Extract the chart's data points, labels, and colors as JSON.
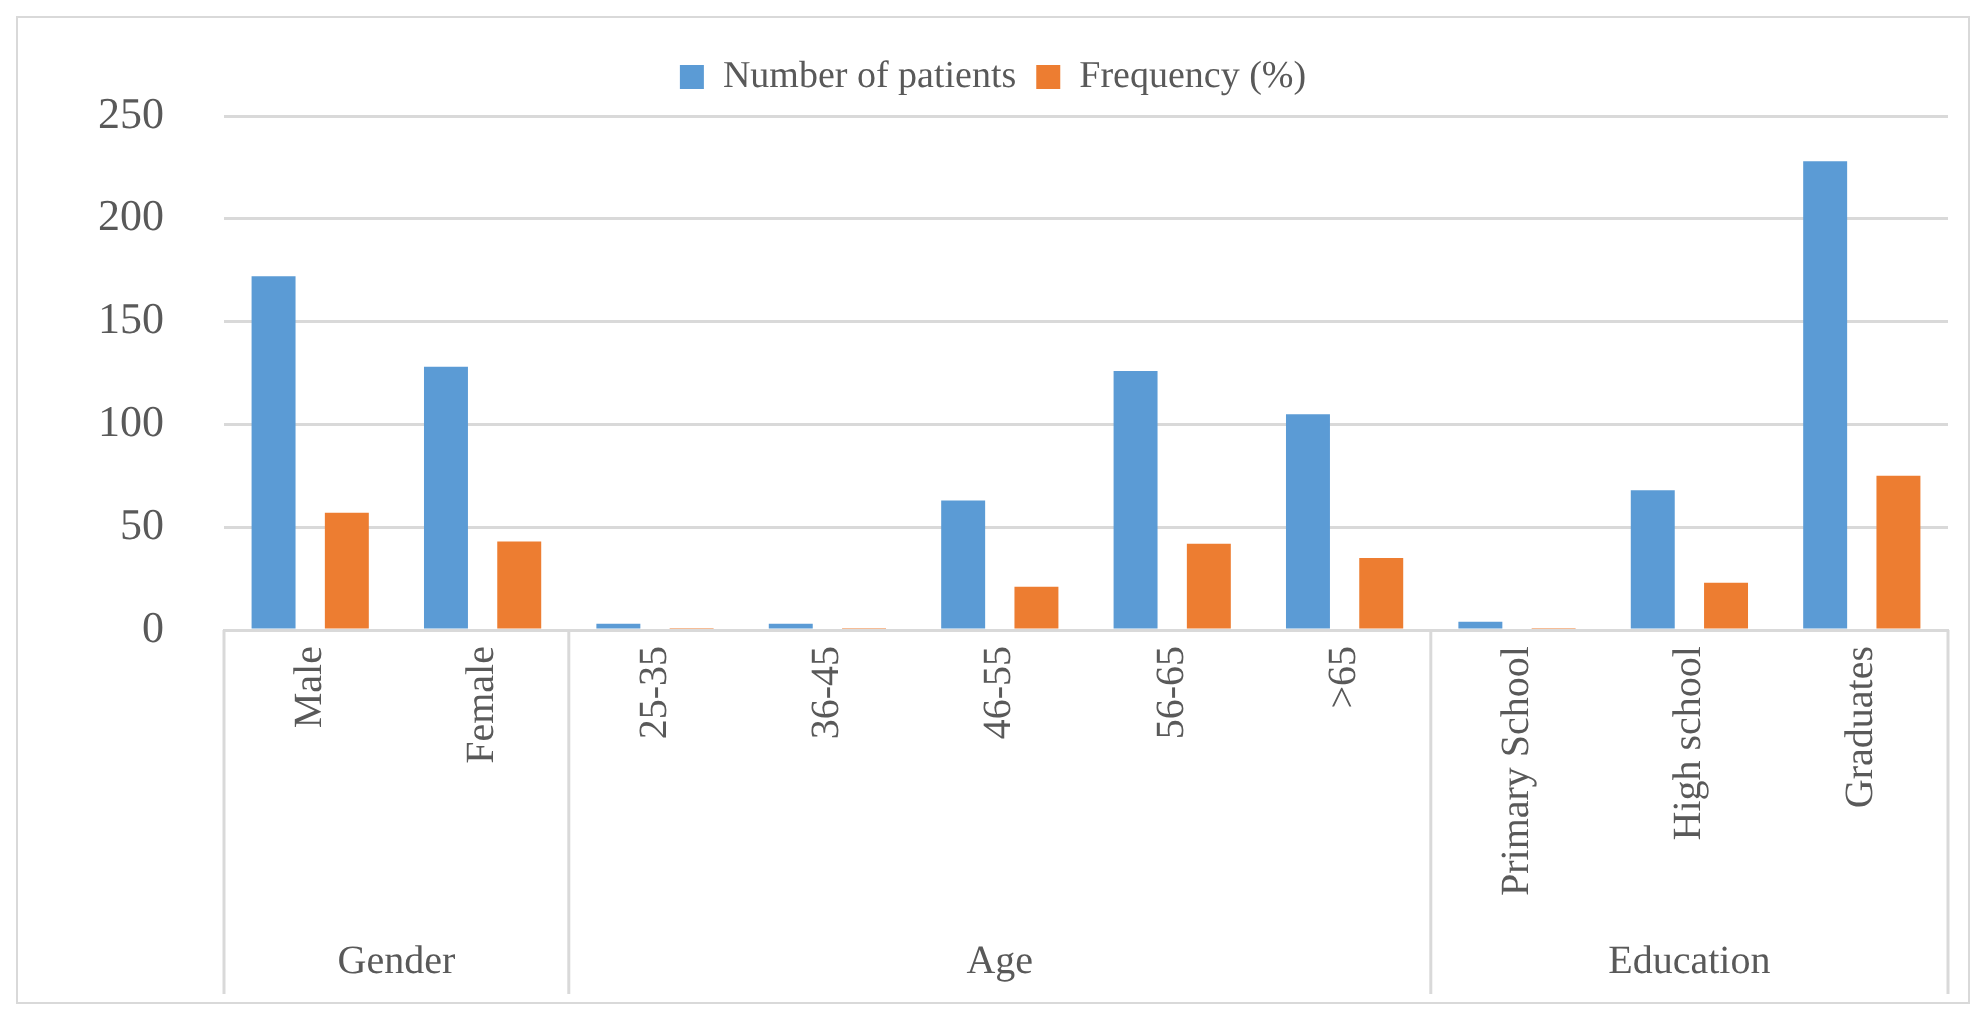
{
  "chart_data": {
    "type": "bar",
    "categories": [
      "Male",
      "Female",
      "25-35",
      "36-45",
      "46-55",
      "56-65",
      ">65",
      "Primary School",
      "High school",
      "Graduates"
    ],
    "series": [
      {
        "name": "Number of patients",
        "color": "#5b9bd5",
        "values": [
          172,
          128,
          3,
          3,
          63,
          126,
          105,
          4,
          68,
          228
        ]
      },
      {
        "name": "Frequency (%)",
        "color": "#ed7d31",
        "values": [
          57,
          43,
          1,
          1,
          21,
          42,
          35,
          1,
          23,
          75
        ]
      }
    ],
    "ylim": [
      0,
      250
    ],
    "yticks": [
      0,
      50,
      100,
      150,
      200,
      250
    ],
    "grid": "y",
    "legend": "top",
    "annotations": [
      "Gender",
      "Age",
      "Education"
    ]
  }
}
